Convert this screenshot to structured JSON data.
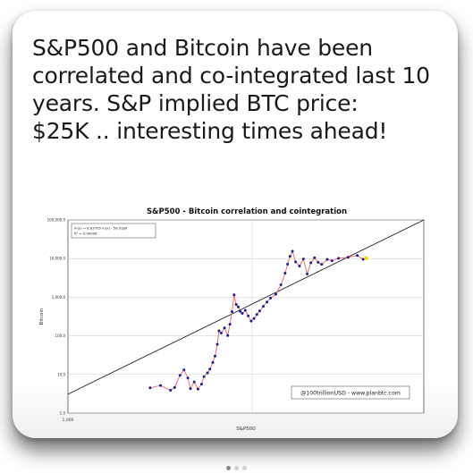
{
  "post": {
    "lines": [
      "S&P500 and Bitcoin have been",
      "correlated and co-integrated last 10",
      "years. S&P implied BTC price:",
      "$25K .. interesting times ahead!"
    ]
  },
  "carousel": {
    "count": 3,
    "active": 0
  },
  "colors": {
    "point": "#1e1e8c",
    "path": "#e8707a",
    "fit_line": "#222222",
    "grid": "#c8c8c8",
    "latest_marker": "#f2d600"
  },
  "chart_data": {
    "type": "scatter",
    "title": "S&P500 - Bitcoin correlation and cointegration",
    "xlabel": "S&P500",
    "ylabel": "Bitcoin",
    "x_scale": "log",
    "y_scale": "log",
    "x_ticks": [
      "1,000"
    ],
    "y_ticks": [
      "100,000.0",
      "10,000.0",
      "1,000.0",
      "100.0",
      "10.0",
      "1.0"
    ],
    "y_tick_values": [
      100000,
      10000,
      1000,
      100,
      10,
      1
    ],
    "ylim": [
      1,
      100000
    ],
    "xlim": [
      1000,
      5000
    ],
    "legend": "ln(y) = 8.83705 ln(x) - 59.9189\nR² = 0.90006",
    "fit": {
      "slope_log": 8.83705,
      "intercept": -59.9189,
      "r2": 0.90006
    },
    "annotation": "@100trillionUSD - www.planbtc.com",
    "series": [
      {
        "values": [
          {
            "x": 1450,
            "y": 4.5
          },
          {
            "x": 1520,
            "y": 5.2
          },
          {
            "x": 1590,
            "y": 3.9
          },
          {
            "x": 1620,
            "y": 4.6
          },
          {
            "x": 1660,
            "y": 9.5
          },
          {
            "x": 1690,
            "y": 13.2
          },
          {
            "x": 1720,
            "y": 8.1
          },
          {
            "x": 1740,
            "y": 4.3
          },
          {
            "x": 1770,
            "y": 6.4
          },
          {
            "x": 1800,
            "y": 4.2
          },
          {
            "x": 1830,
            "y": 5.6
          },
          {
            "x": 1850,
            "y": 8.8
          },
          {
            "x": 1880,
            "y": 11.0
          },
          {
            "x": 1900,
            "y": 13.8
          },
          {
            "x": 1925,
            "y": 20.5
          },
          {
            "x": 1945,
            "y": 30.0
          },
          {
            "x": 1965,
            "y": 60.0
          },
          {
            "x": 1980,
            "y": 135.0
          },
          {
            "x": 2000,
            "y": 118.0
          },
          {
            "x": 2030,
            "y": 160.0
          },
          {
            "x": 2060,
            "y": 102.0
          },
          {
            "x": 2080,
            "y": 200.0
          },
          {
            "x": 2100,
            "y": 420.0
          },
          {
            "x": 2120,
            "y": 1150.0
          },
          {
            "x": 2140,
            "y": 650.0
          },
          {
            "x": 2160,
            "y": 560.0
          },
          {
            "x": 2180,
            "y": 430.0
          },
          {
            "x": 2200,
            "y": 380.0
          },
          {
            "x": 2230,
            "y": 460.0
          },
          {
            "x": 2260,
            "y": 330.0
          },
          {
            "x": 2290,
            "y": 240.0
          },
          {
            "x": 2320,
            "y": 280.0
          },
          {
            "x": 2350,
            "y": 360.0
          },
          {
            "x": 2380,
            "y": 440.0
          },
          {
            "x": 2420,
            "y": 580.0
          },
          {
            "x": 2460,
            "y": 750.0
          },
          {
            "x": 2500,
            "y": 950.0
          },
          {
            "x": 2560,
            "y": 1200.0
          },
          {
            "x": 2620,
            "y": 2100.0
          },
          {
            "x": 2670,
            "y": 4200.0
          },
          {
            "x": 2700,
            "y": 7200.0
          },
          {
            "x": 2730,
            "y": 11500.0
          },
          {
            "x": 2760,
            "y": 15500.0
          },
          {
            "x": 2800,
            "y": 8200.0
          },
          {
            "x": 2850,
            "y": 6400.0
          },
          {
            "x": 2900,
            "y": 9800.0
          },
          {
            "x": 2950,
            "y": 4000.0
          },
          {
            "x": 3000,
            "y": 7800.0
          },
          {
            "x": 3050,
            "y": 10500.0
          },
          {
            "x": 3100,
            "y": 8000.0
          },
          {
            "x": 3150,
            "y": 7100.0
          },
          {
            "x": 3230,
            "y": 9500.0
          },
          {
            "x": 3300,
            "y": 8800.0
          },
          {
            "x": 3400,
            "y": 10200.0
          },
          {
            "x": 3550,
            "y": 10800.0
          },
          {
            "x": 3700,
            "y": 12000.0
          },
          {
            "x": 3800,
            "y": 9600.0
          }
        ]
      }
    ],
    "latest_point": {
      "x": 3850,
      "y": 10200.0
    }
  }
}
